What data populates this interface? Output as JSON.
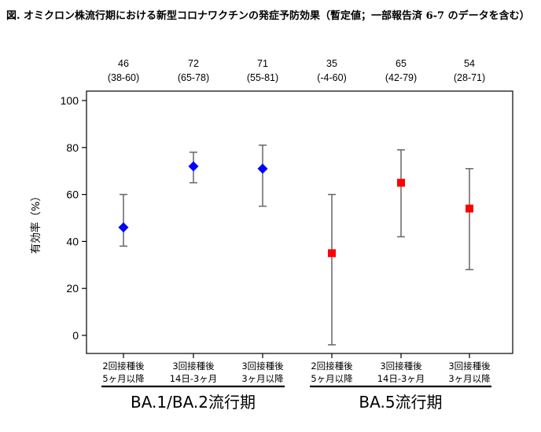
{
  "title": "図. オミクロン株流行期における新型コロナワクチンの発症予防効果（暫定値；一部報告済 6-7 のデータを含む）",
  "chart_data": {
    "type": "scatter",
    "ylabel": "有効率（%）",
    "ylim": [
      -5,
      100
    ],
    "yticks": [
      0,
      20,
      40,
      60,
      80,
      100
    ],
    "grid": false,
    "groups": [
      {
        "label": "BA.1/BA.2流行期",
        "color": "#0000ff",
        "marker": "diamond"
      },
      {
        "label": "BA.5流行期",
        "color": "#ff0000",
        "marker": "square"
      }
    ],
    "points": [
      {
        "category": [
          "2回接種後",
          "5ヶ月以降"
        ],
        "group": 0,
        "value": 46,
        "lower": 38,
        "upper": 60,
        "label_value": "46",
        "label_ci": "(38-60)"
      },
      {
        "category": [
          "3回接種後",
          "14日-3ヶ月"
        ],
        "group": 0,
        "value": 72,
        "lower": 65,
        "upper": 78,
        "label_value": "72",
        "label_ci": "(65-78)"
      },
      {
        "category": [
          "3回接種後",
          "3ヶ月以降"
        ],
        "group": 0,
        "value": 71,
        "lower": 55,
        "upper": 81,
        "label_value": "71",
        "label_ci": "(55-81)"
      },
      {
        "category": [
          "2回接種後",
          "5ヶ月以降"
        ],
        "group": 1,
        "value": 35,
        "lower": -4,
        "upper": 60,
        "label_value": "35",
        "label_ci": "(-4-60)"
      },
      {
        "category": [
          "3回接種後",
          "14日-3ヶ月"
        ],
        "group": 1,
        "value": 65,
        "lower": 42,
        "upper": 79,
        "label_value": "65",
        "label_ci": "(42-79)"
      },
      {
        "category": [
          "3回接種後",
          "3ヶ月以降"
        ],
        "group": 1,
        "value": 54,
        "lower": 28,
        "upper": 71,
        "label_value": "54",
        "label_ci": "(28-71)"
      }
    ]
  }
}
